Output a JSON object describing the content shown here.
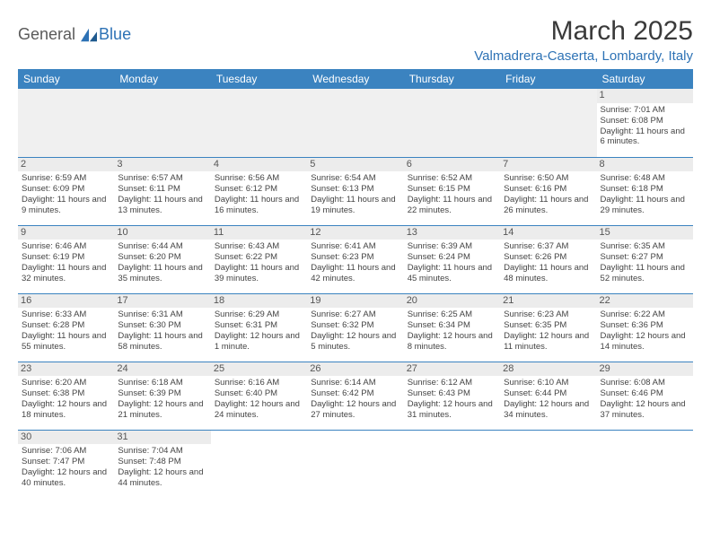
{
  "logo": {
    "text1": "General",
    "text2": "Blue"
  },
  "title": "March 2025",
  "location": "Valmadrera-Caserta, Lombardy, Italy",
  "colors": {
    "header_bg": "#3b83c0",
    "header_text": "#ffffff",
    "accent": "#2d72b5",
    "daynum_bg": "#ececec",
    "text": "#444444"
  },
  "weekdays": [
    "Sunday",
    "Monday",
    "Tuesday",
    "Wednesday",
    "Thursday",
    "Friday",
    "Saturday"
  ],
  "first_weekday_index": 6,
  "days": [
    {
      "n": 1,
      "sunrise": "7:01 AM",
      "sunset": "6:08 PM",
      "daylight": "11 hours and 6 minutes."
    },
    {
      "n": 2,
      "sunrise": "6:59 AM",
      "sunset": "6:09 PM",
      "daylight": "11 hours and 9 minutes."
    },
    {
      "n": 3,
      "sunrise": "6:57 AM",
      "sunset": "6:11 PM",
      "daylight": "11 hours and 13 minutes."
    },
    {
      "n": 4,
      "sunrise": "6:56 AM",
      "sunset": "6:12 PM",
      "daylight": "11 hours and 16 minutes."
    },
    {
      "n": 5,
      "sunrise": "6:54 AM",
      "sunset": "6:13 PM",
      "daylight": "11 hours and 19 minutes."
    },
    {
      "n": 6,
      "sunrise": "6:52 AM",
      "sunset": "6:15 PM",
      "daylight": "11 hours and 22 minutes."
    },
    {
      "n": 7,
      "sunrise": "6:50 AM",
      "sunset": "6:16 PM",
      "daylight": "11 hours and 26 minutes."
    },
    {
      "n": 8,
      "sunrise": "6:48 AM",
      "sunset": "6:18 PM",
      "daylight": "11 hours and 29 minutes."
    },
    {
      "n": 9,
      "sunrise": "6:46 AM",
      "sunset": "6:19 PM",
      "daylight": "11 hours and 32 minutes."
    },
    {
      "n": 10,
      "sunrise": "6:44 AM",
      "sunset": "6:20 PM",
      "daylight": "11 hours and 35 minutes."
    },
    {
      "n": 11,
      "sunrise": "6:43 AM",
      "sunset": "6:22 PM",
      "daylight": "11 hours and 39 minutes."
    },
    {
      "n": 12,
      "sunrise": "6:41 AM",
      "sunset": "6:23 PM",
      "daylight": "11 hours and 42 minutes."
    },
    {
      "n": 13,
      "sunrise": "6:39 AM",
      "sunset": "6:24 PM",
      "daylight": "11 hours and 45 minutes."
    },
    {
      "n": 14,
      "sunrise": "6:37 AM",
      "sunset": "6:26 PM",
      "daylight": "11 hours and 48 minutes."
    },
    {
      "n": 15,
      "sunrise": "6:35 AM",
      "sunset": "6:27 PM",
      "daylight": "11 hours and 52 minutes."
    },
    {
      "n": 16,
      "sunrise": "6:33 AM",
      "sunset": "6:28 PM",
      "daylight": "11 hours and 55 minutes."
    },
    {
      "n": 17,
      "sunrise": "6:31 AM",
      "sunset": "6:30 PM",
      "daylight": "11 hours and 58 minutes."
    },
    {
      "n": 18,
      "sunrise": "6:29 AM",
      "sunset": "6:31 PM",
      "daylight": "12 hours and 1 minute."
    },
    {
      "n": 19,
      "sunrise": "6:27 AM",
      "sunset": "6:32 PM",
      "daylight": "12 hours and 5 minutes."
    },
    {
      "n": 20,
      "sunrise": "6:25 AM",
      "sunset": "6:34 PM",
      "daylight": "12 hours and 8 minutes."
    },
    {
      "n": 21,
      "sunrise": "6:23 AM",
      "sunset": "6:35 PM",
      "daylight": "12 hours and 11 minutes."
    },
    {
      "n": 22,
      "sunrise": "6:22 AM",
      "sunset": "6:36 PM",
      "daylight": "12 hours and 14 minutes."
    },
    {
      "n": 23,
      "sunrise": "6:20 AM",
      "sunset": "6:38 PM",
      "daylight": "12 hours and 18 minutes."
    },
    {
      "n": 24,
      "sunrise": "6:18 AM",
      "sunset": "6:39 PM",
      "daylight": "12 hours and 21 minutes."
    },
    {
      "n": 25,
      "sunrise": "6:16 AM",
      "sunset": "6:40 PM",
      "daylight": "12 hours and 24 minutes."
    },
    {
      "n": 26,
      "sunrise": "6:14 AM",
      "sunset": "6:42 PM",
      "daylight": "12 hours and 27 minutes."
    },
    {
      "n": 27,
      "sunrise": "6:12 AM",
      "sunset": "6:43 PM",
      "daylight": "12 hours and 31 minutes."
    },
    {
      "n": 28,
      "sunrise": "6:10 AM",
      "sunset": "6:44 PM",
      "daylight": "12 hours and 34 minutes."
    },
    {
      "n": 29,
      "sunrise": "6:08 AM",
      "sunset": "6:46 PM",
      "daylight": "12 hours and 37 minutes."
    },
    {
      "n": 30,
      "sunrise": "7:06 AM",
      "sunset": "7:47 PM",
      "daylight": "12 hours and 40 minutes."
    },
    {
      "n": 31,
      "sunrise": "7:04 AM",
      "sunset": "7:48 PM",
      "daylight": "12 hours and 44 minutes."
    }
  ],
  "labels": {
    "sunrise": "Sunrise:",
    "sunset": "Sunset:",
    "daylight": "Daylight:"
  }
}
